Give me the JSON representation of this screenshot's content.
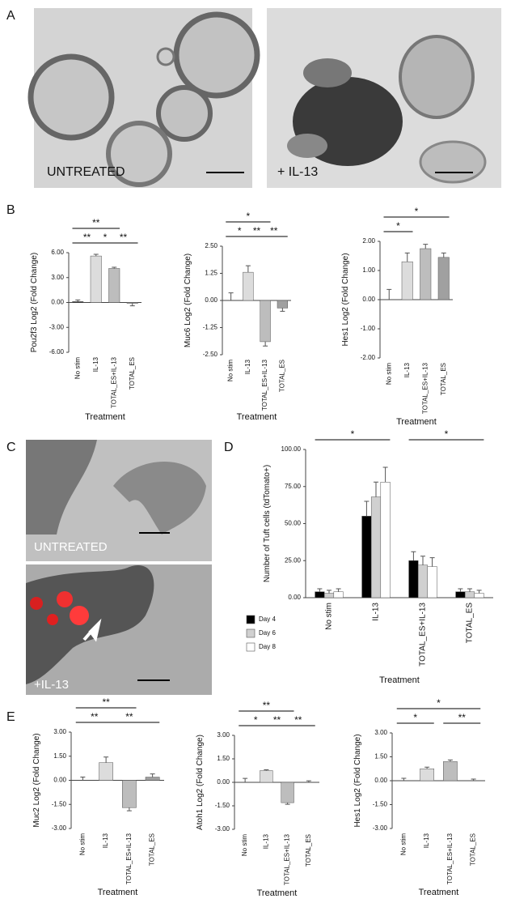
{
  "panel_letters": [
    "A",
    "B",
    "C",
    "D",
    "E"
  ],
  "image_labels": [
    "UNTREATED",
    "+ IL-13",
    "UNTREATED",
    "+IL-13"
  ],
  "chart_data": [
    {
      "type": "bar",
      "ylabel": "Pou2f3 Log2 (Fold Change)",
      "xlabel": "Treatment",
      "categories": [
        "No stim",
        "IL-13",
        "TOTAL_ES+IL-13",
        "TOTAL_ES"
      ],
      "values": [
        0.1,
        5.6,
        4.1,
        -0.1
      ],
      "errors": [
        0.2,
        0.2,
        0.15,
        0.3
      ],
      "colors": [
        "#000000",
        "#dcdcdc",
        "#bdbdbd",
        "#a0a0a0"
      ],
      "ylim": [
        -6,
        6
      ],
      "yticks": [
        {
          "value": 6,
          "label": "6.00"
        },
        {
          "value": 3,
          "label": "3.00"
        },
        {
          "value": 0,
          "label": "0.00"
        },
        {
          "value": -3,
          "label": "-3.00"
        },
        {
          "value": -6,
          "label": "-6.00"
        }
      ],
      "annotations": [
        {
          "text": "**",
          "from": 0,
          "to": 2
        },
        {
          "text": "**",
          "from": 0,
          "to": 1
        },
        {
          "text": "*",
          "from": 1,
          "to": 2
        },
        {
          "text": "**",
          "from": 2,
          "to": 3
        }
      ]
    },
    {
      "type": "bar",
      "ylabel": "Muc6 Log2 (Fold Change)",
      "xlabel": "Treatment",
      "categories": [
        "No stim",
        "IL-13",
        "TOTAL_ES+IL-13",
        "TOTAL_ES"
      ],
      "values": [
        0,
        1.3,
        -1.9,
        -0.35
      ],
      "errors": [
        0.35,
        0.3,
        0.2,
        0.15
      ],
      "colors": [
        "#000000",
        "#dcdcdc",
        "#bdbdbd",
        "#a0a0a0"
      ],
      "ylim": [
        -2.5,
        2.5
      ],
      "yticks": [
        {
          "value": 2.5,
          "label": "2.50"
        },
        {
          "value": 1.25,
          "label": "1.25"
        },
        {
          "value": 0,
          "label": "0.00"
        },
        {
          "value": -1.25,
          "label": "-1.25"
        },
        {
          "value": -2.5,
          "label": "-2.50"
        }
      ],
      "annotations": [
        {
          "text": "*",
          "from": 0,
          "to": 2
        },
        {
          "text": "*",
          "from": 0,
          "to": 1
        },
        {
          "text": "**",
          "from": 1,
          "to": 2
        },
        {
          "text": "**",
          "from": 2,
          "to": 3
        }
      ]
    },
    {
      "type": "bar",
      "ylabel": "Hes1 Log2 (Fold Change)",
      "xlabel": "Treatment",
      "categories": [
        "No stim",
        "IL-13",
        "TOTAL_ES+IL-13",
        "TOTAL_ES"
      ],
      "values": [
        0,
        1.3,
        1.75,
        1.45
      ],
      "errors": [
        0.35,
        0.3,
        0.15,
        0.15
      ],
      "colors": [
        "#000000",
        "#dcdcdc",
        "#bdbdbd",
        "#a0a0a0"
      ],
      "ylim": [
        -2,
        2
      ],
      "yticks": [
        {
          "value": 2,
          "label": "2.00"
        },
        {
          "value": 1,
          "label": "1.00"
        },
        {
          "value": 0,
          "label": "0.00"
        },
        {
          "value": -1,
          "label": "-1.00"
        },
        {
          "value": -2,
          "label": "-2.00"
        }
      ],
      "annotations": [
        {
          "text": "*",
          "from": 0,
          "to": 3
        },
        {
          "text": "*",
          "from": 0,
          "to": 1
        }
      ]
    },
    {
      "type": "bar",
      "ylabel": "Number of Tuft cells (tdTomato+)",
      "xlabel": "Treatment",
      "categories": [
        "No stim",
        "IL-13",
        "TOTAL_ES+IL-13",
        "TOTAL_ES"
      ],
      "series": [
        {
          "name": "Day 4",
          "color": "#000000",
          "values": [
            4,
            55,
            25,
            4
          ],
          "errors": [
            2,
            10,
            6,
            2
          ]
        },
        {
          "name": "Day 6",
          "color": "#d0d0d0",
          "values": [
            3,
            68,
            22,
            4
          ],
          "errors": [
            2,
            10,
            6,
            2
          ]
        },
        {
          "name": "Day 8",
          "color": "#ffffff",
          "values": [
            4,
            78,
            21,
            3
          ],
          "errors": [
            2,
            10,
            6,
            2
          ]
        }
      ],
      "ylim": [
        0,
        100
      ],
      "yticks": [
        {
          "value": 0,
          "label": "0.00"
        },
        {
          "value": 25,
          "label": "25.00"
        },
        {
          "value": 50,
          "label": "50.00"
        },
        {
          "value": 75,
          "label": "75.00"
        },
        {
          "value": 100,
          "label": "100.00"
        }
      ],
      "annotations": [
        {
          "text": "*",
          "from": 0,
          "to": 1
        },
        {
          "text": "*",
          "from": 2,
          "to": 3
        }
      ]
    },
    {
      "type": "bar",
      "ylabel": "Muc2 Log2 (Fold Change)",
      "xlabel": "Treatment",
      "categories": [
        "No stim",
        "IL-13",
        "TOTAL_ES+IL-13",
        "TOTAL_ES"
      ],
      "values": [
        0,
        1.1,
        -1.7,
        0.2
      ],
      "errors": [
        0.2,
        0.35,
        0.2,
        0.2
      ],
      "colors": [
        "#000000",
        "#dcdcdc",
        "#bdbdbd",
        "#a0a0a0"
      ],
      "ylim": [
        -3,
        3
      ],
      "yticks": [
        {
          "value": 3,
          "label": "3.00"
        },
        {
          "value": 1.5,
          "label": "1.50"
        },
        {
          "value": 0,
          "label": "0.00"
        },
        {
          "value": -1.5,
          "label": "-1.50"
        },
        {
          "value": -3,
          "label": "-3.00"
        }
      ],
      "annotations": [
        {
          "text": "**",
          "from": 0,
          "to": 2
        },
        {
          "text": "**",
          "from": 0,
          "to": 1
        },
        {
          "text": "**",
          "from": 1,
          "to": 3
        }
      ]
    },
    {
      "type": "bar",
      "ylabel": "Atoh1 Log2 (Fold Change)",
      "xlabel": "Treatment",
      "categories": [
        "No stim",
        "IL-13",
        "TOTAL_ES+IL-13",
        "TOTAL_ES"
      ],
      "values": [
        0,
        0.75,
        -1.3,
        0
      ],
      "errors": [
        0.25,
        0.05,
        0.1,
        0.1
      ],
      "colors": [
        "#000000",
        "#dcdcdc",
        "#bdbdbd",
        "#a0a0a0"
      ],
      "ylim": [
        -3,
        3
      ],
      "yticks": [
        {
          "value": 3,
          "label": "3.00"
        },
        {
          "value": 1.5,
          "label": "1.50"
        },
        {
          "value": 0,
          "label": "0.00"
        },
        {
          "value": -1.5,
          "label": "-1.50"
        },
        {
          "value": -3,
          "label": "-3.00"
        }
      ],
      "annotations": [
        {
          "text": "**",
          "from": 0,
          "to": 2
        },
        {
          "text": "*",
          "from": 0,
          "to": 1
        },
        {
          "text": "**",
          "from": 1,
          "to": 2
        },
        {
          "text": "**",
          "from": 2,
          "to": 3
        }
      ]
    },
    {
      "type": "bar",
      "ylabel": "Hes1 Log2 (Fold Change)",
      "xlabel": "Treatment",
      "categories": [
        "No stim",
        "IL-13",
        "TOTAL_ES+IL-13",
        "TOTAL_ES"
      ],
      "values": [
        0,
        0.75,
        1.2,
        0
      ],
      "errors": [
        0.15,
        0.1,
        0.1,
        0.1
      ],
      "colors": [
        "#000000",
        "#dcdcdc",
        "#bdbdbd",
        "#a0a0a0"
      ],
      "ylim": [
        -3,
        3
      ],
      "yticks": [
        {
          "value": 3,
          "label": "3.00"
        },
        {
          "value": 1.5,
          "label": "1.50"
        },
        {
          "value": 0,
          "label": "0.00"
        },
        {
          "value": -1.5,
          "label": "-1.50"
        },
        {
          "value": -3,
          "label": "-3.00"
        }
      ],
      "annotations": [
        {
          "text": "*",
          "from": 0,
          "to": 3
        },
        {
          "text": "*",
          "from": 0,
          "to": 1
        },
        {
          "text": "**",
          "from": 2,
          "to": 3
        }
      ]
    }
  ]
}
